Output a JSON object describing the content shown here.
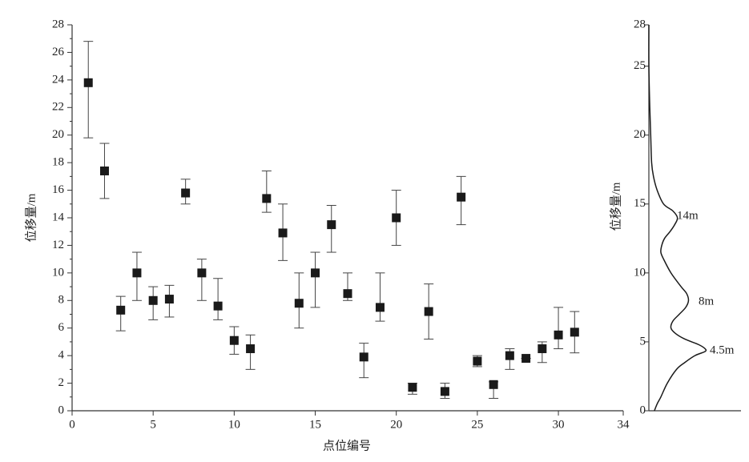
{
  "chart_data": [
    {
      "type": "errorbar",
      "xlabel": "点位编号",
      "ylabel": "位移量/m",
      "x": [
        1,
        2,
        3,
        4,
        5,
        6,
        7,
        8,
        9,
        10,
        11,
        12,
        13,
        14,
        15,
        16,
        17,
        18,
        19,
        20,
        21,
        22,
        23,
        24,
        25,
        26,
        27,
        28,
        29,
        30,
        31
      ],
      "values": [
        23.8,
        17.4,
        7.3,
        10,
        8,
        8.1,
        15.8,
        10,
        7.6,
        5.1,
        4.5,
        15.4,
        12.9,
        7.8,
        10,
        13.5,
        8.5,
        3.9,
        7.5,
        14,
        1.7,
        7.2,
        1.4,
        15.5,
        3.6,
        1.9,
        4.0,
        3.8,
        4.5,
        5.5,
        5.7
      ],
      "upper": [
        26.8,
        19.4,
        8.3,
        11.5,
        9,
        9.1,
        16.8,
        11,
        9.6,
        6.1,
        5.5,
        17.4,
        15,
        10,
        11.5,
        14.9,
        10,
        4.9,
        10,
        16,
        2.0,
        9.2,
        2.0,
        17,
        4.0,
        2.1,
        4.5,
        3.8,
        5.0,
        7.5,
        7.2
      ],
      "lower": [
        19.8,
        15.4,
        5.8,
        8,
        6.6,
        6.8,
        15.0,
        8,
        6.6,
        4.1,
        3.0,
        14.4,
        10.9,
        6,
        7.5,
        11.5,
        8.0,
        2.4,
        6.5,
        12,
        1.2,
        5.2,
        0.9,
        13.5,
        3.2,
        0.9,
        3.0,
        3.8,
        3.5,
        4.5,
        4.2
      ],
      "color": "#1a1a1a",
      "xlim": [
        0,
        34
      ],
      "xticks": [
        0,
        5,
        10,
        15,
        20,
        25,
        30,
        34
      ],
      "ylim": [
        0,
        28
      ],
      "yticks": [
        0,
        2,
        4,
        6,
        8,
        10,
        12,
        14,
        16,
        18,
        20,
        22,
        24,
        26,
        28
      ],
      "minor_yticks": [
        1,
        3,
        5,
        7,
        9,
        11,
        13,
        15,
        17,
        19,
        21,
        23,
        25,
        27
      ]
    },
    {
      "type": "density",
      "ylabel": "位移量/m",
      "y": [
        0,
        0.5,
        1,
        2,
        3,
        3.5,
        4,
        4.3,
        4.5,
        4.8,
        5.2,
        5.6,
        6,
        6.5,
        7,
        7.5,
        8,
        8.5,
        9,
        10,
        11,
        11.5,
        12,
        12.5,
        13,
        13.5,
        14,
        14.5,
        15,
        16,
        17,
        18,
        20,
        22,
        25,
        28
      ],
      "density": [
        0.06,
        0.09,
        0.13,
        0.2,
        0.3,
        0.39,
        0.5,
        0.61,
        0.61,
        0.54,
        0.39,
        0.29,
        0.24,
        0.26,
        0.33,
        0.4,
        0.43,
        0.41,
        0.35,
        0.24,
        0.16,
        0.13,
        0.14,
        0.17,
        0.23,
        0.28,
        0.31,
        0.26,
        0.16,
        0.09,
        0.05,
        0.03,
        0.02,
        0.01,
        0,
        0
      ],
      "color": "#1a1a1a",
      "xlim": [
        0,
        1
      ],
      "ylim": [
        0,
        28
      ],
      "yticks": [
        0,
        5,
        10,
        15,
        20,
        25,
        28
      ],
      "annotations": [
        "14m",
        "8m",
        "4.5m"
      ]
    }
  ]
}
